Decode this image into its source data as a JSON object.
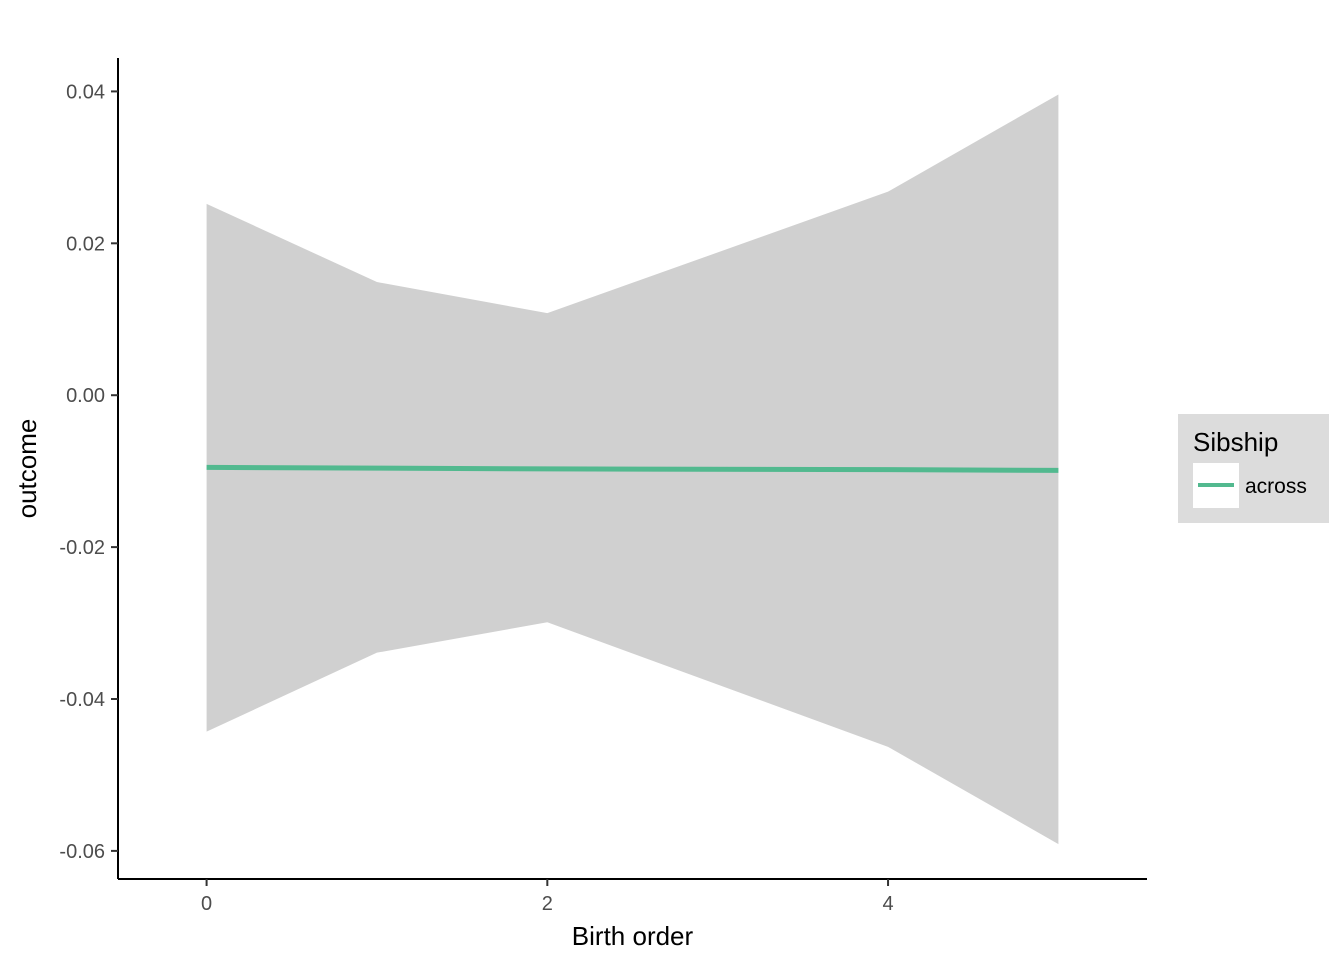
{
  "chart_data": {
    "type": "line",
    "title": "",
    "xlabel": "Birth order",
    "ylabel": "outcome",
    "x": [
      0,
      1,
      2,
      4,
      5
    ],
    "xticks": [
      0,
      2,
      4
    ],
    "xtick_labels": [
      "0",
      "2",
      "4"
    ],
    "xlim": [
      -0.52,
      5.52
    ],
    "yticks": [
      0.04,
      0.02,
      0.0,
      -0.02,
      -0.04,
      -0.06
    ],
    "ytick_labels": [
      "0.04",
      "0.02",
      "0.00",
      "-0.02",
      "-0.04",
      "-0.06"
    ],
    "ylim": [
      -0.0637,
      0.0444
    ],
    "grid": false,
    "series": [
      {
        "name": "across",
        "color": "#52b98f",
        "values": [
          -0.0095,
          -0.0096,
          -0.0097,
          -0.0098,
          -0.0099
        ],
        "ribbon": {
          "color": "#d0d0d0",
          "upper": [
            0.0252,
            0.0149,
            0.0108,
            0.0268,
            0.0396
          ],
          "lower": [
            -0.0443,
            -0.0339,
            -0.0299,
            -0.0463,
            -0.0591
          ]
        }
      }
    ],
    "legend": {
      "title": "Sibship",
      "placement": "right",
      "background": "#dcdcdc"
    }
  }
}
